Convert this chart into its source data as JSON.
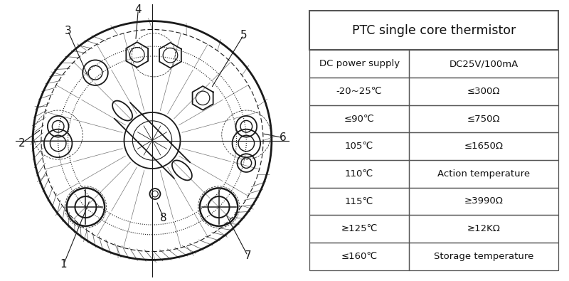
{
  "table_title": "PTC single core thermistor",
  "table_rows": [
    [
      "DC power supply",
      "DC25V/100mA"
    ],
    [
      "-20~25℃",
      "≤300Ω"
    ],
    [
      "≤90℃",
      "≤750Ω"
    ],
    [
      "105℃",
      "≤1650Ω"
    ],
    [
      "110℃",
      "Action temperature"
    ],
    [
      "115℃",
      "≥3990Ω"
    ],
    [
      "≥125℃",
      "≥12KΩ"
    ],
    [
      "≤160℃",
      "Storage temperature"
    ]
  ],
  "bg_color": "#ffffff",
  "line_color": "#1a1a1a",
  "text_color": "#111111"
}
